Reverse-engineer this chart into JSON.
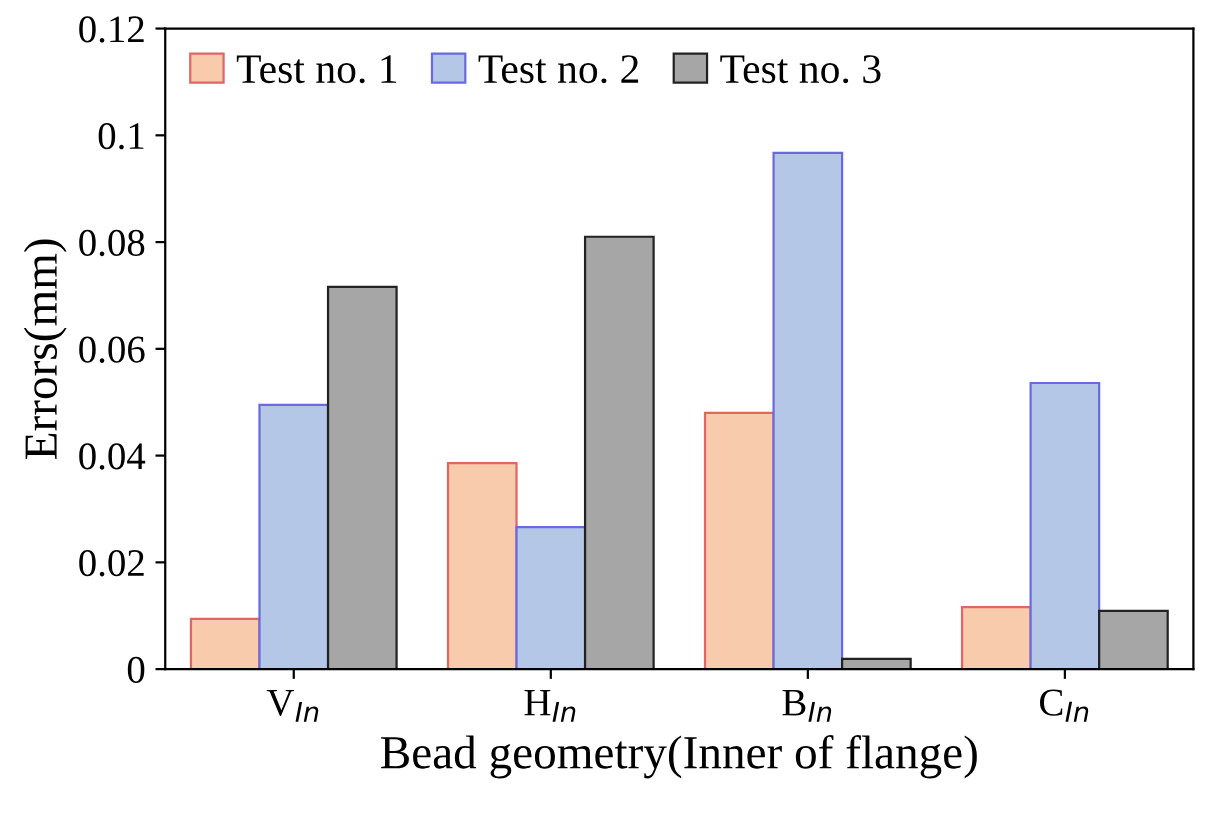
{
  "chart_data": {
    "type": "bar",
    "xlabel": "Bead geometry(Inner of flange)",
    "ylabel": "Errors(mm)",
    "categories": [
      "V$_{In}$",
      "H$_{In}$",
      "B$_{In}$",
      "C$_{In}$"
    ],
    "series": [
      {
        "name": "Test no. 1",
        "color": "#f8cbad",
        "values": [
          0.0094,
          0.0386,
          0.048,
          0.0116
        ]
      },
      {
        "name": "Test no. 2",
        "color": "#b4c7e7",
        "values": [
          0.0495,
          0.0266,
          0.0967,
          0.0536
        ]
      },
      {
        "name": "Test no. 3",
        "color": "#a6a6a6",
        "values": [
          0.0716,
          0.081,
          0.0019,
          0.0109
        ]
      }
    ],
    "ylim": [
      0,
      0.12
    ],
    "yticks": [
      0,
      0.02,
      0.04,
      0.06,
      0.08,
      0.1,
      0.12
    ],
    "grid": false,
    "legend": "top"
  }
}
